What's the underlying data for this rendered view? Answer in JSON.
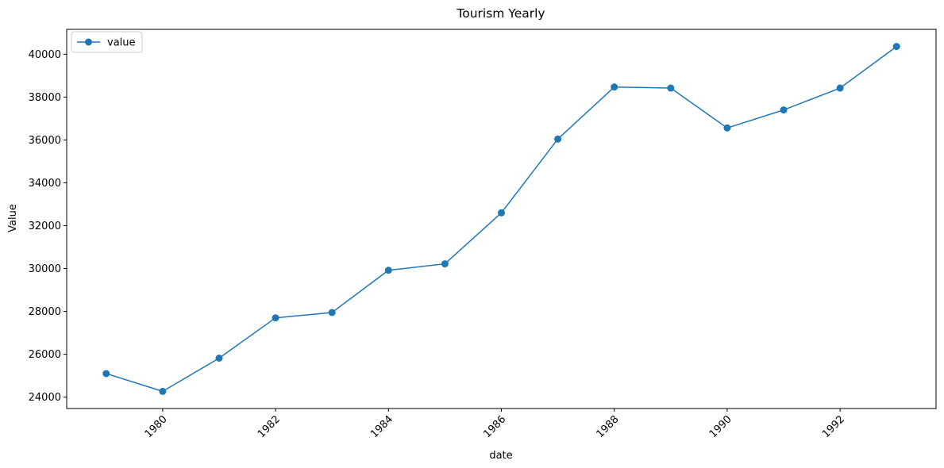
{
  "chart_data": {
    "type": "line",
    "title": "Tourism Yearly",
    "xlabel": "date",
    "ylabel": "Value",
    "x": [
      1979,
      1980,
      1981,
      1982,
      1983,
      1984,
      1985,
      1986,
      1987,
      1988,
      1989,
      1990,
      1991,
      1992,
      1993
    ],
    "series": [
      {
        "name": "value",
        "color": "#1f77b4",
        "marker": "circle",
        "values": [
          25100,
          24270,
          25820,
          27700,
          27950,
          29920,
          30220,
          32600,
          36040,
          38470,
          38420,
          36560,
          37400,
          38420,
          40360
        ]
      }
    ],
    "xlim": [
      1978.3,
      1993.7
    ],
    "ylim": [
      23470,
      41160
    ],
    "x_ticks": [
      1980,
      1982,
      1984,
      1986,
      1988,
      1990,
      1992
    ],
    "x_tick_labels": [
      "1980",
      "1982",
      "1984",
      "1986",
      "1988",
      "1990",
      "1992"
    ],
    "y_ticks": [
      24000,
      26000,
      28000,
      30000,
      32000,
      34000,
      36000,
      38000,
      40000
    ],
    "y_tick_labels": [
      "24000",
      "26000",
      "28000",
      "30000",
      "32000",
      "34000",
      "36000",
      "38000",
      "40000"
    ],
    "x_tick_rotation": 45,
    "grid": false,
    "legend_position": "top-left"
  }
}
